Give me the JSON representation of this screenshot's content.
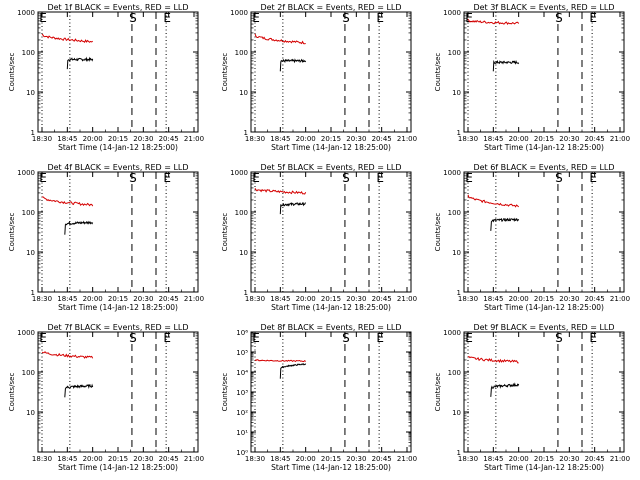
{
  "chart_data": [
    {
      "type": "line",
      "title": "Det 1f BLACK = Events, RED = LLD",
      "xlabel": "Start Time (14-Jan-12 18:25:00)",
      "ylabel": "Counts/sec",
      "x_ticks": [
        "18:30",
        "18:45",
        "20:00",
        "20:15",
        "20:30",
        "20:45",
        "21:00"
      ],
      "y_ticks": [
        "1",
        "10",
        "100",
        "1000"
      ],
      "y_scale": "log",
      "ylim": [
        1,
        1000
      ],
      "markers": [
        {
          "label": "E",
          "tick_index": 0,
          "style": "dotted"
        },
        {
          "label": "",
          "tick_index": 1.1,
          "style": "dotted"
        },
        {
          "label": "S",
          "tick_index": 3.55,
          "style": "dashed"
        },
        {
          "label": "",
          "tick_index": 4.5,
          "style": "dashed"
        },
        {
          "label": "E",
          "tick_index": 4.9,
          "style": "dotted"
        }
      ],
      "series": [
        {
          "color": "#d40000",
          "start_tick": 0.0,
          "end_tick": 2.0,
          "levels": [
            280,
            180
          ]
        },
        {
          "color": "#000000",
          "start_tick": 1.0,
          "end_tick": 2.0,
          "levels": [
            65,
            65
          ]
        }
      ]
    },
    {
      "type": "line",
      "title": "Det 2f BLACK = Events, RED = LLD",
      "xlabel": "Start Time (14-Jan-12 18:25:00)",
      "ylabel": "Counts/sec",
      "x_ticks": [
        "18:30",
        "18:45",
        "20:00",
        "20:15",
        "20:30",
        "20:45",
        "21:00"
      ],
      "y_ticks": [
        "1",
        "10",
        "100",
        "1000"
      ],
      "y_scale": "log",
      "ylim": [
        1,
        1000
      ],
      "markers": [
        {
          "label": "E",
          "tick_index": 0,
          "style": "dotted"
        },
        {
          "label": "",
          "tick_index": 1.1,
          "style": "dotted"
        },
        {
          "label": "S",
          "tick_index": 3.55,
          "style": "dashed"
        },
        {
          "label": "",
          "tick_index": 4.5,
          "style": "dashed"
        },
        {
          "label": "E",
          "tick_index": 4.9,
          "style": "dotted"
        }
      ],
      "series": [
        {
          "color": "#d40000",
          "start_tick": 0.0,
          "end_tick": 2.0,
          "levels": [
            270,
            170
          ]
        },
        {
          "color": "#000000",
          "start_tick": 1.0,
          "end_tick": 2.0,
          "levels": [
            60,
            60
          ]
        }
      ]
    },
    {
      "type": "line",
      "title": "Det 3f BLACK = Events, RED = LLD",
      "xlabel": "Start Time (14-Jan-12 18:25:00)",
      "ylabel": "Counts/sec",
      "x_ticks": [
        "18:30",
        "18:45",
        "20:00",
        "20:15",
        "20:30",
        "20:45",
        "21:00"
      ],
      "y_ticks": [
        "1",
        "10",
        "100",
        "1000"
      ],
      "y_scale": "log",
      "ylim": [
        1,
        1000
      ],
      "markers": [
        {
          "label": "E",
          "tick_index": 0,
          "style": "dotted"
        },
        {
          "label": "",
          "tick_index": 1.1,
          "style": "dotted"
        },
        {
          "label": "S",
          "tick_index": 3.55,
          "style": "dashed"
        },
        {
          "label": "",
          "tick_index": 4.5,
          "style": "dashed"
        },
        {
          "label": "E",
          "tick_index": 4.9,
          "style": "dotted"
        }
      ],
      "series": [
        {
          "color": "#d40000",
          "start_tick": 0.0,
          "end_tick": 2.0,
          "levels": [
            620,
            520
          ]
        },
        {
          "color": "#000000",
          "start_tick": 1.0,
          "end_tick": 2.0,
          "levels": [
            55,
            55
          ]
        }
      ]
    },
    {
      "type": "line",
      "title": "Det 4f BLACK = Events, RED = LLD",
      "xlabel": "Start Time (14-Jan-12 18:25:00)",
      "ylabel": "Counts/sec",
      "x_ticks": [
        "18:30",
        "18:45",
        "20:00",
        "20:15",
        "20:30",
        "20:45",
        "21:00"
      ],
      "y_ticks": [
        "1",
        "10",
        "100",
        "1000"
      ],
      "y_scale": "log",
      "ylim": [
        1,
        1000
      ],
      "markers": [
        {
          "label": "E",
          "tick_index": 0,
          "style": "dotted"
        },
        {
          "label": "",
          "tick_index": 1.1,
          "style": "dotted"
        },
        {
          "label": "S",
          "tick_index": 3.55,
          "style": "dashed"
        },
        {
          "label": "",
          "tick_index": 4.5,
          "style": "dashed"
        },
        {
          "label": "E",
          "tick_index": 4.9,
          "style": "dotted"
        }
      ],
      "series": [
        {
          "color": "#d40000",
          "start_tick": 0.0,
          "end_tick": 2.0,
          "levels": [
            240,
            150
          ]
        },
        {
          "color": "#000000",
          "start_tick": 0.9,
          "end_tick": 2.0,
          "levels": [
            50,
            55
          ]
        }
      ]
    },
    {
      "type": "line",
      "title": "Det 5f BLACK = Events, RED = LLD",
      "xlabel": "Start Time (14-Jan-12 18:25:00)",
      "ylabel": "Counts/sec",
      "x_ticks": [
        "18:30",
        "18:45",
        "20:00",
        "20:15",
        "20:30",
        "20:45",
        "21:00"
      ],
      "y_ticks": [
        "1",
        "10",
        "100",
        "1000"
      ],
      "y_scale": "log",
      "ylim": [
        1,
        1000
      ],
      "markers": [
        {
          "label": "E",
          "tick_index": 0,
          "style": "dotted"
        },
        {
          "label": "",
          "tick_index": 1.1,
          "style": "dotted"
        },
        {
          "label": "S",
          "tick_index": 3.55,
          "style": "dashed"
        },
        {
          "label": "",
          "tick_index": 4.5,
          "style": "dashed"
        },
        {
          "label": "E",
          "tick_index": 4.9,
          "style": "dotted"
        }
      ],
      "series": [
        {
          "color": "#d40000",
          "start_tick": 0.0,
          "end_tick": 2.0,
          "levels": [
            380,
            300
          ]
        },
        {
          "color": "#000000",
          "start_tick": 1.0,
          "end_tick": 2.0,
          "levels": [
            150,
            160
          ]
        }
      ]
    },
    {
      "type": "line",
      "title": "Det 6f BLACK = Events, RED = LLD",
      "xlabel": "Start Time (14-Jan-12 18:25:00)",
      "ylabel": "Counts/sec",
      "x_ticks": [
        "18:30",
        "18:45",
        "20:00",
        "20:15",
        "20:30",
        "20:45",
        "21:00"
      ],
      "y_ticks": [
        "1",
        "10",
        "100",
        "1000"
      ],
      "y_scale": "log",
      "ylim": [
        1,
        1000
      ],
      "markers": [
        {
          "label": "E",
          "tick_index": 0,
          "style": "dotted"
        },
        {
          "label": "",
          "tick_index": 1.1,
          "style": "dotted"
        },
        {
          "label": "S",
          "tick_index": 3.55,
          "style": "dashed"
        },
        {
          "label": "",
          "tick_index": 4.5,
          "style": "dashed"
        },
        {
          "label": "E",
          "tick_index": 4.9,
          "style": "dotted"
        }
      ],
      "series": [
        {
          "color": "#d40000",
          "start_tick": 0.0,
          "end_tick": 2.0,
          "levels": [
            260,
            140
          ]
        },
        {
          "color": "#000000",
          "start_tick": 0.9,
          "end_tick": 2.0,
          "levels": [
            60,
            65
          ]
        }
      ]
    },
    {
      "type": "line",
      "title": "Det 7f BLACK = Events, RED = LLD",
      "xlabel": "Start Time (14-Jan-12 18:25:00)",
      "ylabel": "Counts/sec",
      "x_ticks": [
        "18:30",
        "18:45",
        "20:00",
        "20:15",
        "20:30",
        "20:45",
        "21:00"
      ],
      "y_ticks": [
        "10",
        "100",
        "1000"
      ],
      "y_scale": "log",
      "ylim": [
        1,
        1000
      ],
      "markers": [
        {
          "label": "E",
          "tick_index": 0,
          "style": "dotted"
        },
        {
          "label": "",
          "tick_index": 1.1,
          "style": "dotted"
        },
        {
          "label": "S",
          "tick_index": 3.55,
          "style": "dashed"
        },
        {
          "label": "",
          "tick_index": 4.5,
          "style": "dashed"
        },
        {
          "label": "E",
          "tick_index": 4.9,
          "style": "dotted"
        }
      ],
      "series": [
        {
          "color": "#d40000",
          "start_tick": 0.0,
          "end_tick": 2.0,
          "levels": [
            330,
            230
          ]
        },
        {
          "color": "#000000",
          "start_tick": 0.9,
          "end_tick": 2.0,
          "levels": [
            40,
            45
          ]
        }
      ]
    },
    {
      "type": "line",
      "title": "Det 8f BLACK = Events, RED = LLD",
      "xlabel": "Start Time (14-Jan-12 18:25:00)",
      "ylabel": "Counts/sec",
      "x_ticks": [
        "18:30",
        "18:45",
        "20:00",
        "20:15",
        "20:30",
        "20:45",
        "21:00"
      ],
      "y_ticks": [
        "10⁰",
        "10¹",
        "10²",
        "10³",
        "10⁴",
        "10⁵",
        "10⁶"
      ],
      "y_scale": "log",
      "ylim": [
        1,
        1000000
      ],
      "markers": [
        {
          "label": "E",
          "tick_index": 0,
          "style": "dotted"
        },
        {
          "label": "",
          "tick_index": 1.1,
          "style": "dotted"
        },
        {
          "label": "S",
          "tick_index": 3.55,
          "style": "dashed"
        },
        {
          "label": "",
          "tick_index": 4.5,
          "style": "dashed"
        },
        {
          "label": "E",
          "tick_index": 4.9,
          "style": "dotted"
        }
      ],
      "series": [
        {
          "color": "#d40000",
          "start_tick": 0.0,
          "end_tick": 2.0,
          "levels": [
            40000,
            35000
          ]
        },
        {
          "color": "#000000",
          "start_tick": 1.0,
          "end_tick": 2.0,
          "levels": [
            15000,
            25000
          ]
        }
      ]
    },
    {
      "type": "line",
      "title": "Det 9f BLACK = Events, RED = LLD",
      "xlabel": "Start Time (14-Jan-12 18:25:00)",
      "ylabel": "Counts/sec",
      "x_ticks": [
        "18:30",
        "18:45",
        "20:00",
        "20:15",
        "20:30",
        "20:45",
        "21:00"
      ],
      "y_ticks": [
        "1",
        "10",
        "100",
        "1000"
      ],
      "y_scale": "log",
      "ylim": [
        1,
        1000
      ],
      "markers": [
        {
          "label": "E",
          "tick_index": 0,
          "style": "dotted"
        },
        {
          "label": "",
          "tick_index": 1.1,
          "style": "dotted"
        },
        {
          "label": "S",
          "tick_index": 3.55,
          "style": "dashed"
        },
        {
          "label": "",
          "tick_index": 4.5,
          "style": "dashed"
        },
        {
          "label": "E",
          "tick_index": 4.9,
          "style": "dotted"
        }
      ],
      "series": [
        {
          "color": "#d40000",
          "start_tick": 0.0,
          "end_tick": 2.0,
          "levels": [
            240,
            180
          ]
        },
        {
          "color": "#000000",
          "start_tick": 0.9,
          "end_tick": 2.0,
          "levels": [
            40,
            48
          ]
        }
      ]
    }
  ]
}
